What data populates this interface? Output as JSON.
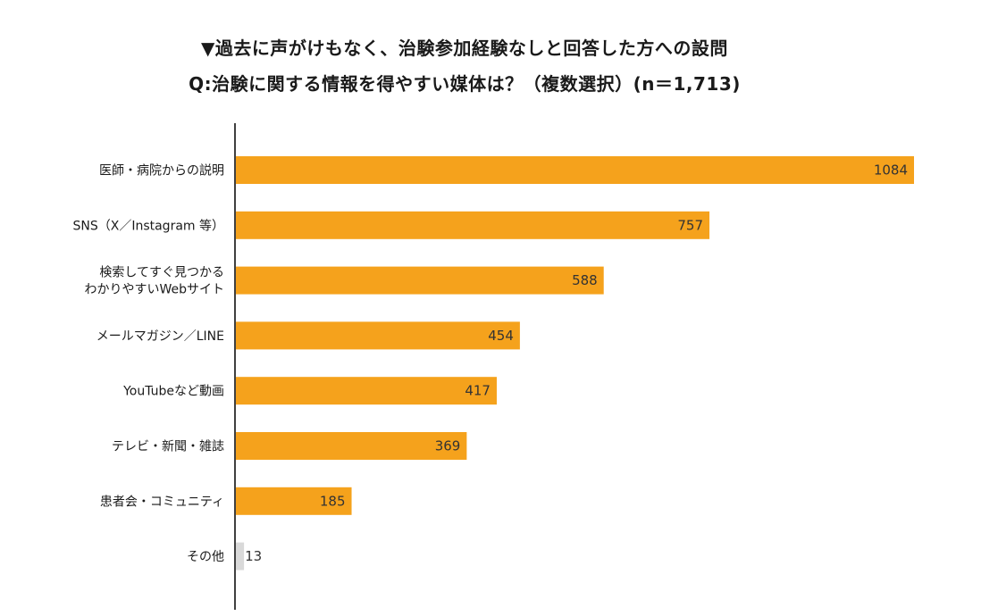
{
  "title": "▼過去に声がけもなく、治験参加経験なしと回答した方への設問",
  "subtitle": "Q:治験に関する情報を得やすい媒体は？（複数選択）(n＝1,713)",
  "colors": {
    "bar": "#F5A21C",
    "bar_other": "#D9D9D9",
    "axis": "#000000"
  },
  "chart_data": {
    "type": "bar",
    "orientation": "horizontal",
    "title": "▼過去に声がけもなく、治験参加経験なしと回答した方への設問",
    "subtitle": "Q:治験に関する情報を得やすい媒体は？（複数選択）(n＝1,713)",
    "categories": [
      [
        "医師・病院からの説明"
      ],
      [
        "SNS（X／Instagram 等）"
      ],
      [
        "検索してすぐ見つかる",
        "わかりやすいWebサイト"
      ],
      [
        "メールマガジン／LINE"
      ],
      [
        "YouTubeなど動画"
      ],
      [
        "テレビ・新聞・雑誌"
      ],
      [
        "患者会・コミュニティ"
      ],
      [
        "その他"
      ]
    ],
    "values": [
      1084,
      757,
      588,
      454,
      417,
      369,
      185,
      13
    ],
    "xlim": [
      0,
      1084
    ],
    "grid": false,
    "legend": "none",
    "data_labels": true
  }
}
